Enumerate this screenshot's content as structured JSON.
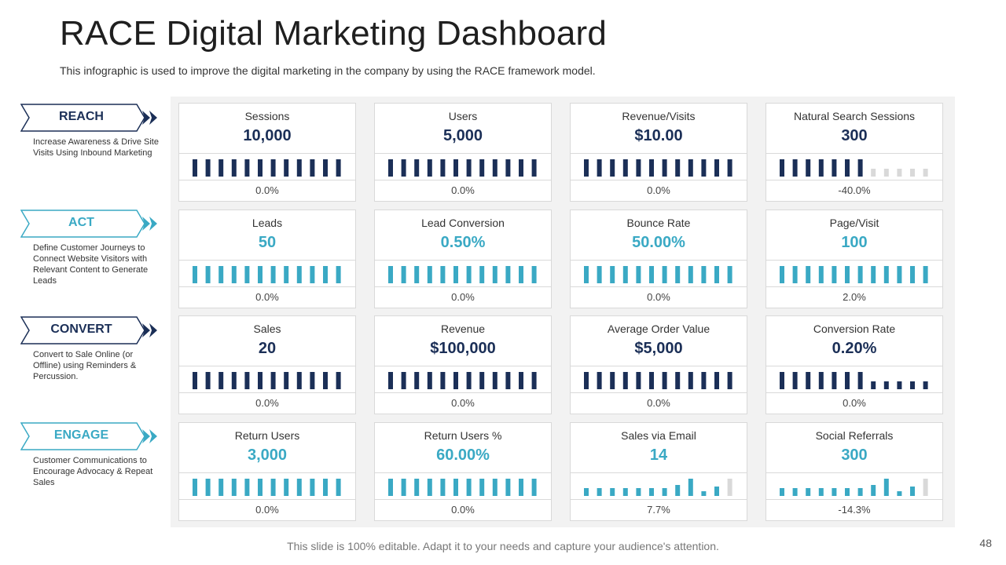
{
  "title": "RACE Digital Marketing Dashboard",
  "subtitle": "This infographic is used to improve the digital marketing in the company by using the RACE framework model.",
  "colors": {
    "navy": "#1b2f57",
    "teal": "#3aa9c4",
    "gray_bar": "#d9d9d9"
  },
  "stages": [
    {
      "label": "REACH",
      "description": "Increase Awareness & Drive Site Visits Using Inbound Marketing",
      "color": "#1b2f57"
    },
    {
      "label": "ACT",
      "description": "Define Customer Journeys to Connect Website Visitors with Relevant Content to Generate Leads",
      "color": "#3aa9c4"
    },
    {
      "label": "CONVERT",
      "description": "Convert to  Sale Online (or Offline) using Reminders & Percussion.",
      "color": "#1b2f57"
    },
    {
      "label": "ENGAGE",
      "description": "Customer Communications to Encourage Advocacy & Repeat Sales",
      "color": "#3aa9c4"
    }
  ],
  "rows": [
    {
      "cards": [
        {
          "name": "Sessions",
          "value": "10,000",
          "change": "0.0%",
          "bars": "full"
        },
        {
          "name": "Users",
          "value": "5,000",
          "change": "0.0%",
          "bars": "full"
        },
        {
          "name": "Revenue/Visits",
          "value": "$10.00",
          "change": "0.0%",
          "bars": "full"
        },
        {
          "name": "Natural Search Sessions",
          "value": "300",
          "change": "-40.0%",
          "bars": "partial_gray"
        }
      ]
    },
    {
      "cards": [
        {
          "name": "Leads",
          "value": "50",
          "change": "0.0%",
          "bars": "full"
        },
        {
          "name": "Lead Conversion",
          "value": "0.50%",
          "change": "0.0%",
          "bars": "full"
        },
        {
          "name": "Bounce Rate",
          "value": "50.00%",
          "change": "0.0%",
          "bars": "full"
        },
        {
          "name": "Page/Visit",
          "value": "100",
          "change": "2.0%",
          "bars": "full"
        }
      ]
    },
    {
      "cards": [
        {
          "name": "Sales",
          "value": "20",
          "change": "0.0%",
          "bars": "full"
        },
        {
          "name": "Revenue",
          "value": "$100,000",
          "change": "0.0%",
          "bars": "full"
        },
        {
          "name": "Average  Order Value",
          "value": "$5,000",
          "change": "0.0%",
          "bars": "full"
        },
        {
          "name": "Conversion Rate",
          "value": "0.20%",
          "change": "0.0%",
          "bars": "partial_short"
        }
      ]
    },
    {
      "cards": [
        {
          "name": "Return Users",
          "value": "3,000",
          "change": "0.0%",
          "bars": "full"
        },
        {
          "name": "Return Users %",
          "value": "60.00%",
          "change": "0.0%",
          "bars": "full"
        },
        {
          "name": "Sales via Email",
          "value": "14",
          "change": "7.7%",
          "bars": "sparkline"
        },
        {
          "name": "Social Referrals",
          "value": "300",
          "change": "-14.3%",
          "bars": "sparkline"
        }
      ]
    }
  ],
  "footer": "This slide is 100% editable. Adapt it to your needs and capture your audience's attention.",
  "page_number": "48"
}
